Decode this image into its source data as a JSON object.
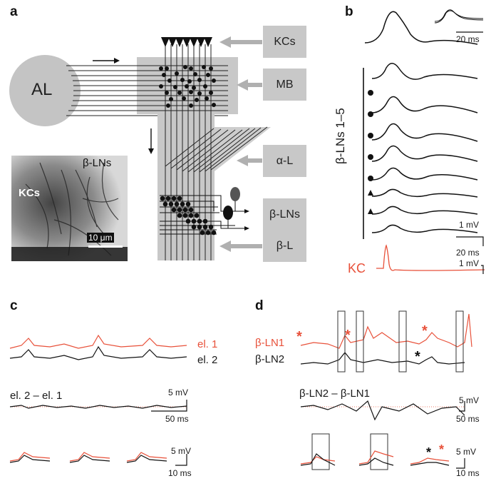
{
  "panels": {
    "a": "a",
    "b": "b",
    "c": "c",
    "d": "d"
  },
  "panel_a": {
    "al_label": "AL",
    "box_labels": [
      "KCs",
      "MB",
      "α-L",
      "β-LNs",
      "β-L"
    ],
    "inset": {
      "label_kcs": "KCs",
      "label_blns": "β-LNs",
      "scale": "10 μm"
    }
  },
  "panel_b": {
    "inset_scale": "20 ms",
    "ylabel": "β-LNs 1–5",
    "scale_mv_1": "1 mV",
    "scale_ms": "20 ms",
    "scale_mv_2": "1 mV",
    "kc_label": "KC"
  },
  "panel_c": {
    "el1": "el. 1",
    "el2": "el. 2",
    "diff_label": "el. 2 – el. 1",
    "scale1_mv": "5 mV",
    "scale1_ms": "50 ms",
    "scale2_mv": "5 mV",
    "scale2_ms": "10 ms"
  },
  "panel_d": {
    "bln1": "β-LN1",
    "bln2": "β-LN2",
    "diff_label": "β-LN2 – β-LN1",
    "scale1_mv": "5 mV",
    "scale1_ms": "50 ms",
    "scale2_mv": "5 mV",
    "scale2_ms": "10 ms"
  },
  "colors": {
    "red": "#e8513a",
    "grey": "#c8c8c8",
    "black": "#111111"
  }
}
